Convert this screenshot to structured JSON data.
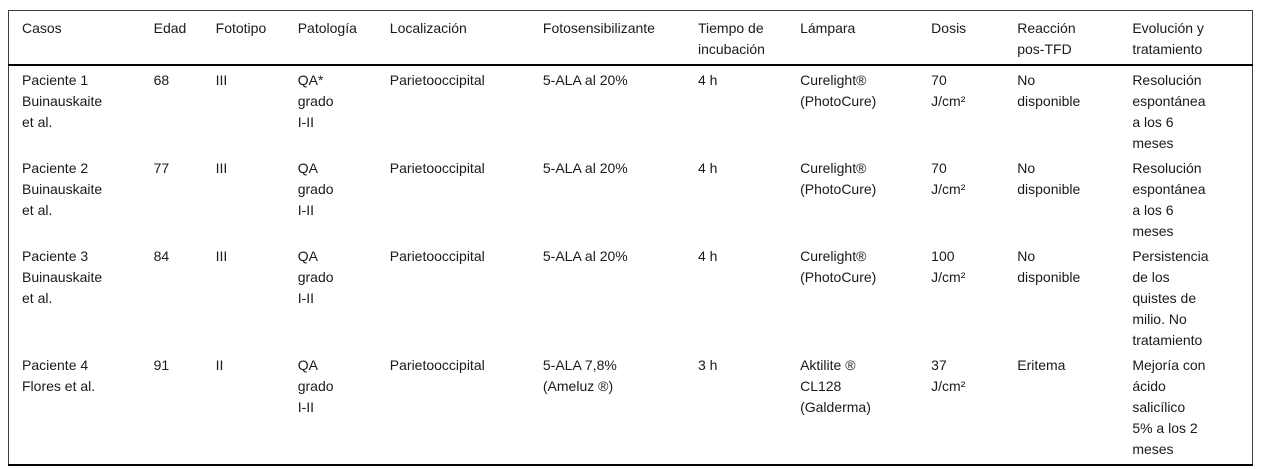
{
  "colors": {
    "background": "#ffffff",
    "text": "#1a1a1a",
    "rule_heavy": "#000000",
    "rule_light": "#3d3d3d"
  },
  "table": {
    "columns": [
      {
        "label": "Casos"
      },
      {
        "label": "Edad"
      },
      {
        "label": "Fototipo"
      },
      {
        "label": "Patología"
      },
      {
        "label": "Localización"
      },
      {
        "label": "Fotosensibilizante"
      },
      {
        "label": "Tiempo de\nincubación"
      },
      {
        "label": "Lámpara"
      },
      {
        "label": "Dosis"
      },
      {
        "label": "Reacción\npos-TFD"
      },
      {
        "label": "Evolución y\ntratamiento"
      }
    ],
    "rows": [
      {
        "cells": [
          "Paciente 1\nBuinauskaite\net al.",
          "68",
          "III",
          "QA*\ngrado\nI-II",
          "Parietooccipital",
          "5-ALA al 20%",
          "4 h",
          "Curelight®\n(PhotoCure)",
          "70\nJ/cm²",
          "No\ndisponible",
          "Resolución\nespontánea\na los 6\nmeses"
        ]
      },
      {
        "cells": [
          "Paciente 2\nBuinauskaite\net al.",
          "77",
          "III",
          "QA\ngrado\nI-II",
          "Parietooccipital",
          "5-ALA al 20%",
          "4 h",
          "Curelight®\n(PhotoCure)",
          "70\nJ/cm²",
          "No\ndisponible",
          "Resolución\nespontánea\na los 6\nmeses"
        ]
      },
      {
        "cells": [
          "Paciente 3\nBuinauskaite\net al.",
          "84",
          "III",
          "QA\ngrado\nI-II",
          "Parietooccipital",
          "5-ALA al 20%",
          "4 h",
          "Curelight®\n(PhotoCure)",
          "100\nJ/cm²",
          "No\ndisponible",
          "Persistencia\nde los\nquistes de\nmilio. No\ntratamiento"
        ]
      },
      {
        "cells": [
          "Paciente 4\nFlores et al.",
          "91",
          "II",
          "QA\ngrado\nI-II",
          "Parietooccipital",
          "5-ALA 7,8%\n(Ameluz ®)",
          "3 h",
          "Aktilite ®\nCL128\n(Galderma)",
          "37\nJ/cm²",
          "Eritema",
          "Mejoría con\nácido\nsalicílico\n5% a los 2\nmeses"
        ]
      }
    ]
  }
}
